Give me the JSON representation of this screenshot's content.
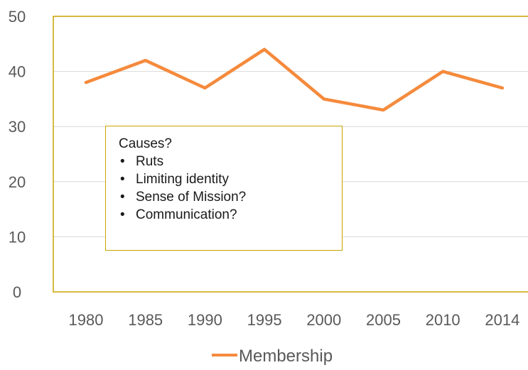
{
  "chart_data": {
    "type": "line",
    "categories": [
      "1980",
      "1985",
      "1990",
      "1995",
      "2000",
      "2005",
      "2010",
      "2014"
    ],
    "series": [
      {
        "name": "Membership",
        "values": [
          38,
          42,
          37,
          44,
          35,
          33,
          40,
          37
        ],
        "color": "#f58a3c"
      }
    ],
    "ylim": [
      0,
      50
    ],
    "yticks": [
      0,
      10,
      20,
      30,
      40,
      50
    ],
    "grid": true,
    "legend_position": "bottom",
    "frame_color": "#c9a400",
    "annotation": {
      "title": "Causes?",
      "items": [
        "Ruts",
        "Limiting identity",
        "Sense of Mission?",
        "Communication?"
      ]
    }
  }
}
